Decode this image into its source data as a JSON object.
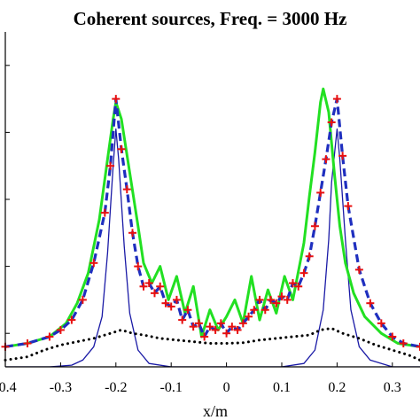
{
  "chart_data": {
    "type": "line",
    "title": "Coherent sources,  Freq. = 3000 Hz",
    "xlabel": "x/m",
    "ylabel": "",
    "xlim": [
      -0.4,
      0.35
    ],
    "ylim": [
      0,
      1
    ],
    "grid": false,
    "legend": "none",
    "x_ticks": [
      -0.4,
      -0.3,
      -0.2,
      -0.1,
      0,
      0.1,
      0.2,
      0.3
    ],
    "x_tick_labels": [
      "-0.4",
      "-0.3",
      "-0.2",
      "-0.1",
      "0",
      "0.1",
      "0.2",
      "0.3"
    ],
    "y_ticks": [
      0.1,
      0.3,
      0.5,
      0.7,
      0.9
    ],
    "series": [
      {
        "style": "solid",
        "color": "#1a1aa6",
        "width": 1.3,
        "x": [
          -0.4,
          -0.36,
          -0.32,
          -0.28,
          -0.26,
          -0.24,
          -0.225,
          -0.215,
          -0.205,
          -0.2,
          -0.195,
          -0.185,
          -0.175,
          -0.16,
          -0.14,
          -0.1,
          0,
          0.1,
          0.14,
          0.16,
          0.175,
          0.185,
          0.19,
          0.2,
          0.205,
          0.215,
          0.225,
          0.24,
          0.26,
          0.3,
          0.35
        ],
        "y": [
          0.0,
          0.0,
          0.0,
          0.005,
          0.02,
          0.06,
          0.15,
          0.34,
          0.6,
          0.71,
          0.62,
          0.36,
          0.16,
          0.05,
          0.01,
          0.0,
          0.0,
          0.0,
          0.01,
          0.05,
          0.17,
          0.38,
          0.55,
          0.71,
          0.62,
          0.38,
          0.17,
          0.06,
          0.02,
          0.0,
          0.0
        ]
      },
      {
        "style": "dotted",
        "color": "#000000",
        "width": 3,
        "x": [
          -0.4,
          -0.36,
          -0.33,
          -0.3,
          -0.27,
          -0.24,
          -0.21,
          -0.19,
          -0.17,
          -0.15,
          -0.12,
          -0.09,
          -0.06,
          -0.03,
          0,
          0.03,
          0.06,
          0.09,
          0.12,
          0.15,
          0.17,
          0.19,
          0.21,
          0.24,
          0.27,
          0.3,
          0.33,
          0.35
        ],
        "y": [
          0.02,
          0.03,
          0.05,
          0.065,
          0.075,
          0.085,
          0.1,
          0.11,
          0.1,
          0.095,
          0.085,
          0.08,
          0.075,
          0.07,
          0.07,
          0.072,
          0.08,
          0.085,
          0.09,
          0.095,
          0.11,
          0.115,
          0.1,
          0.085,
          0.065,
          0.05,
          0.035,
          0.02
        ]
      },
      {
        "style": "solid",
        "color": "#22e022",
        "width": 3,
        "x": [
          -0.4,
          -0.36,
          -0.32,
          -0.29,
          -0.27,
          -0.25,
          -0.23,
          -0.215,
          -0.205,
          -0.2,
          -0.19,
          -0.175,
          -0.16,
          -0.15,
          -0.135,
          -0.12,
          -0.105,
          -0.09,
          -0.075,
          -0.06,
          -0.045,
          -0.03,
          -0.015,
          0,
          0.015,
          0.03,
          0.045,
          0.06,
          0.075,
          0.09,
          0.105,
          0.12,
          0.14,
          0.15,
          0.16,
          0.17,
          0.175,
          0.185,
          0.195,
          0.205,
          0.215,
          0.23,
          0.25,
          0.28,
          0.31,
          0.35
        ],
        "y": [
          0.06,
          0.07,
          0.09,
          0.13,
          0.19,
          0.28,
          0.44,
          0.62,
          0.74,
          0.79,
          0.74,
          0.58,
          0.42,
          0.31,
          0.25,
          0.3,
          0.2,
          0.27,
          0.16,
          0.24,
          0.09,
          0.17,
          0.11,
          0.15,
          0.2,
          0.13,
          0.27,
          0.14,
          0.23,
          0.16,
          0.27,
          0.2,
          0.37,
          0.51,
          0.64,
          0.79,
          0.83,
          0.76,
          0.58,
          0.42,
          0.31,
          0.22,
          0.15,
          0.1,
          0.07,
          0.06
        ]
      },
      {
        "style": "dashed",
        "color": "#1f2fbf",
        "width": 3.2,
        "marker": "+",
        "marker_color": "#e81010",
        "x": [
          -0.4,
          -0.36,
          -0.32,
          -0.3,
          -0.28,
          -0.26,
          -0.24,
          -0.22,
          -0.21,
          -0.2,
          -0.19,
          -0.18,
          -0.17,
          -0.16,
          -0.15,
          -0.14,
          -0.13,
          -0.12,
          -0.11,
          -0.1,
          -0.09,
          -0.08,
          -0.07,
          -0.06,
          -0.05,
          -0.04,
          -0.03,
          -0.02,
          -0.01,
          0,
          0.01,
          0.02,
          0.03,
          0.04,
          0.05,
          0.06,
          0.07,
          0.08,
          0.09,
          0.1,
          0.11,
          0.12,
          0.13,
          0.14,
          0.15,
          0.16,
          0.17,
          0.18,
          0.19,
          0.2,
          0.21,
          0.22,
          0.24,
          0.26,
          0.28,
          0.3,
          0.32,
          0.35
        ],
        "y": [
          0.06,
          0.07,
          0.09,
          0.11,
          0.14,
          0.2,
          0.31,
          0.46,
          0.6,
          0.8,
          0.65,
          0.53,
          0.4,
          0.3,
          0.24,
          0.25,
          0.22,
          0.24,
          0.19,
          0.18,
          0.2,
          0.14,
          0.17,
          0.12,
          0.13,
          0.09,
          0.12,
          0.11,
          0.13,
          0.1,
          0.12,
          0.11,
          0.13,
          0.15,
          0.17,
          0.2,
          0.17,
          0.2,
          0.19,
          0.21,
          0.2,
          0.25,
          0.24,
          0.28,
          0.33,
          0.42,
          0.52,
          0.62,
          0.73,
          0.8,
          0.63,
          0.48,
          0.29,
          0.19,
          0.13,
          0.09,
          0.07,
          0.06
        ]
      }
    ]
  }
}
